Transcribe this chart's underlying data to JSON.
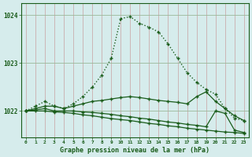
{
  "bg_color": "#d6ecec",
  "line_color": "#1a5c1a",
  "xlabel": "Graphe pression niveau de la mer (hPa)",
  "yticks": [
    1022,
    1023,
    1024
  ],
  "ylim": [
    1021.45,
    1024.25
  ],
  "xlim": [
    -0.5,
    23.5
  ],
  "line1_style": "dotted",
  "line1": [
    1022.0,
    1022.1,
    1022.2,
    1022.1,
    1022.05,
    1022.15,
    1022.3,
    1022.5,
    1022.75,
    1023.1,
    1023.93,
    1023.97,
    1023.83,
    1023.75,
    1023.65,
    1023.4,
    1023.1,
    1022.8,
    1022.6,
    1022.45,
    1022.35,
    1022.05,
    1021.85,
    1021.8
  ],
  "line2_style": "solid",
  "line2": [
    1022.0,
    1022.05,
    1022.1,
    1022.1,
    1022.05,
    1022.1,
    1022.15,
    1022.2,
    1022.22,
    1022.25,
    1022.28,
    1022.3,
    1022.28,
    1022.25,
    1022.22,
    1022.2,
    1022.18,
    1022.15,
    1022.3,
    1022.4,
    1022.2,
    1022.05,
    1021.9,
    1021.8
  ],
  "line3_style": "solid",
  "line3": [
    1022.0,
    1022.02,
    1022.05,
    1022.0,
    1022.0,
    1022.0,
    1021.98,
    1021.97,
    1021.95,
    1021.93,
    1021.9,
    1021.88,
    1021.85,
    1021.83,
    1021.8,
    1021.77,
    1021.75,
    1021.72,
    1021.7,
    1021.67,
    1022.0,
    1021.95,
    1021.6,
    1021.55
  ],
  "line4_style": "solid",
  "line4": [
    1022.0,
    1022.0,
    1022.0,
    1021.98,
    1021.97,
    1021.95,
    1021.92,
    1021.9,
    1021.87,
    1021.84,
    1021.82,
    1021.8,
    1021.77,
    1021.74,
    1021.72,
    1021.69,
    1021.67,
    1021.64,
    1021.62,
    1021.6,
    1021.58,
    1021.56,
    1021.55,
    1021.53
  ]
}
